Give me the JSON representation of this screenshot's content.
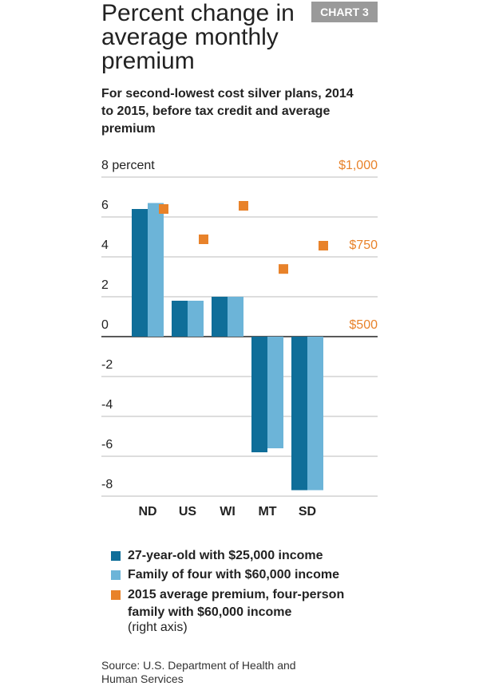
{
  "chart_data": {
    "type": "bar",
    "title": "Percent change in average monthly premium",
    "badge": "CHART 3",
    "subtitle": "For second-lowest cost silver plans, 2014 to 2015, before tax credit and average premium",
    "categories": [
      "ND",
      "US",
      "WI",
      "MT",
      "SD"
    ],
    "series": [
      {
        "name": "27-year-old with $25,000 income",
        "color": "#0f6e99",
        "values": [
          6.4,
          1.8,
          2.0,
          -5.8,
          -7.7
        ]
      },
      {
        "name": "Family of four with $60,000 income",
        "color": "#6cb4d8",
        "values": [
          6.7,
          1.8,
          2.0,
          -5.6,
          -7.7
        ]
      },
      {
        "name": "2015 average premium, four-person family with $60,000 income",
        "color": "#e8822a",
        "axis": "y2",
        "marker": "square",
        "values": [
          900,
          805,
          910,
          712,
          785
        ]
      }
    ],
    "legend_note": "(right axis)",
    "ylim": [
      -8,
      8
    ],
    "yticks": [
      {
        "value": 8,
        "label": "8 percent"
      },
      6,
      4,
      2,
      0,
      -2,
      -4,
      -6,
      -8
    ],
    "y2lim": [
      0,
      1000
    ],
    "y2ticks": [
      {
        "value": 500,
        "label": "$500"
      },
      {
        "value": 750,
        "label": "$750"
      },
      {
        "value": 1000,
        "label": "$1,000"
      }
    ],
    "grid": true,
    "source": "Source: U.S. Department of Health and Human Services"
  }
}
